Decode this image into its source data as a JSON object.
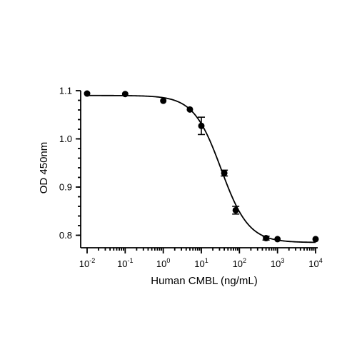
{
  "chart_data": {
    "type": "scatter",
    "xlabel": "Human CMBL (ng/mL)",
    "ylabel": "OD 450nm",
    "x_scale": "log",
    "xlim": [
      0.01,
      10000
    ],
    "ylim": [
      0.78,
      1.1
    ],
    "x_ticks": [
      {
        "base": "10",
        "exp": "-2"
      },
      {
        "base": "10",
        "exp": "-1"
      },
      {
        "base": "10",
        "exp": "0"
      },
      {
        "base": "10",
        "exp": "1"
      },
      {
        "base": "10",
        "exp": "2"
      },
      {
        "base": "10",
        "exp": "3"
      },
      {
        "base": "10",
        "exp": "4"
      }
    ],
    "y_ticks": [
      "0.8",
      "0.9",
      "1.0",
      "1.1"
    ],
    "grid": false,
    "legend": "none",
    "points": [
      {
        "x": 0.01,
        "y": 1.094,
        "err": 0
      },
      {
        "x": 0.1,
        "y": 1.093,
        "err": 0
      },
      {
        "x": 1,
        "y": 1.079,
        "err": 0
      },
      {
        "x": 5,
        "y": 1.061,
        "err": 0
      },
      {
        "x": 10,
        "y": 1.027,
        "err": 0.018
      },
      {
        "x": 40,
        "y": 0.929,
        "err": 0.006
      },
      {
        "x": 80,
        "y": 0.852,
        "err": 0.008
      },
      {
        "x": 500,
        "y": 0.794,
        "err": 0.004
      },
      {
        "x": 1000,
        "y": 0.792,
        "err": 0
      },
      {
        "x": 10000,
        "y": 0.792,
        "err": 0
      }
    ],
    "fit_curve": {
      "model": "4PL",
      "top": 1.09,
      "bottom": 0.785,
      "ec50": 33,
      "hill": 1.2
    }
  }
}
